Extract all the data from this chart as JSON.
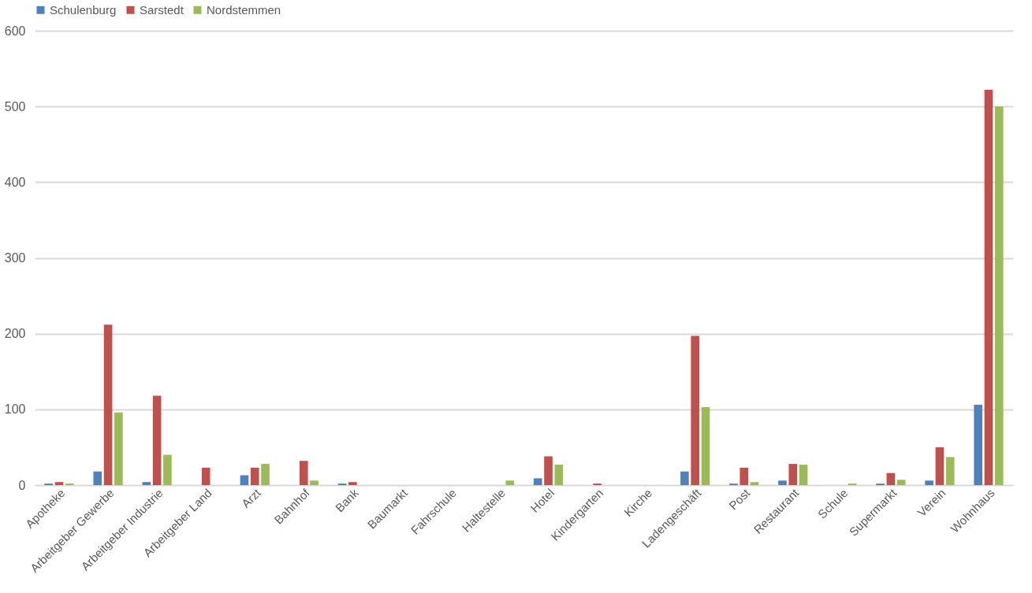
{
  "chart_data": {
    "type": "bar",
    "categories": [
      "Apotheke",
      "Arbeitgeber Gewerbe",
      "Arbeitgeber Industrie",
      "Arbeitgeber Land",
      "Arzt",
      "Bahnhof",
      "Bank",
      "Baumarkt",
      "Fahrschule",
      "Haltestelle",
      "Hotel",
      "Kindergarten",
      "Kirche",
      "Ladengeschäft",
      "Post",
      "Restaurant",
      "Schule",
      "Supermarkt",
      "Verein",
      "Wohnhaus"
    ],
    "series": [
      {
        "name": "Schulenburg",
        "color": "#4f81bd",
        "values": [
          2,
          18,
          4,
          null,
          13,
          null,
          2,
          null,
          null,
          null,
          9,
          null,
          null,
          18,
          2,
          6,
          null,
          2,
          6,
          106
        ]
      },
      {
        "name": "Sarstedt",
        "color": "#c0504d",
        "values": [
          4,
          212,
          118,
          23,
          23,
          32,
          4,
          null,
          null,
          null,
          38,
          2,
          null,
          197,
          23,
          28,
          null,
          16,
          50,
          522
        ]
      },
      {
        "name": "Nordstemmen",
        "color": "#9bbb59",
        "values": [
          2,
          96,
          40,
          null,
          28,
          6,
          null,
          null,
          null,
          6,
          27,
          null,
          null,
          103,
          4,
          27,
          2,
          7,
          37,
          500
        ]
      }
    ],
    "ylim": [
      0,
      600
    ],
    "yticks": [
      0,
      100,
      200,
      300,
      400,
      500,
      600
    ],
    "grid": "y",
    "legend": "top"
  }
}
